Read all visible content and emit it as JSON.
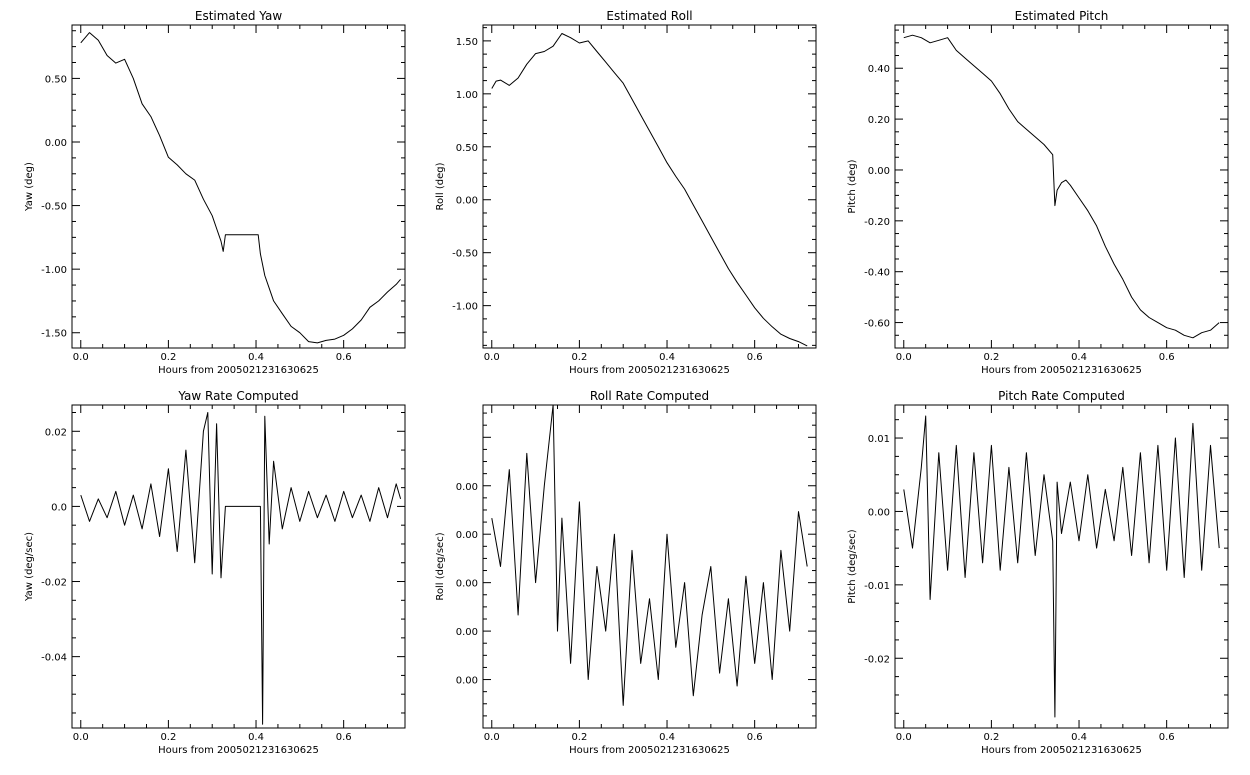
{
  "chart_data": [
    {
      "type": "line",
      "title": "Estimated Yaw",
      "xlabel": "Hours from 2005021231630625",
      "ylabel": "Yaw (deg)",
      "xlim": [
        -0.02,
        0.74
      ],
      "ylim": [
        -1.62,
        0.92
      ],
      "xticks": [
        0.0,
        0.2,
        0.4,
        0.6
      ],
      "xticklabels": [
        "0.0",
        "0.2",
        "0.4",
        "0.6"
      ],
      "yticks": [
        0.5,
        0.0,
        -0.5,
        -1.0,
        -1.5
      ],
      "yticklabels": [
        "0.50",
        "0.00",
        "-0.50",
        "-1.00",
        "-1.50"
      ],
      "series": [
        {
          "x": [
            0.0,
            0.02,
            0.04,
            0.06,
            0.08,
            0.1,
            0.12,
            0.14,
            0.16,
            0.18,
            0.2,
            0.22,
            0.24,
            0.26,
            0.28,
            0.3,
            0.31,
            0.32,
            0.325,
            0.33,
            0.35,
            0.37,
            0.39,
            0.405,
            0.41,
            0.42,
            0.43,
            0.44,
            0.46,
            0.48,
            0.5,
            0.52,
            0.54,
            0.56,
            0.58,
            0.6,
            0.62,
            0.64,
            0.66,
            0.68,
            0.7,
            0.72,
            0.73
          ],
          "y": [
            0.78,
            0.86,
            0.8,
            0.68,
            0.62,
            0.65,
            0.5,
            0.3,
            0.2,
            0.05,
            -0.12,
            -0.18,
            -0.25,
            -0.3,
            -0.45,
            -0.58,
            -0.68,
            -0.78,
            -0.86,
            -0.73,
            -0.73,
            -0.73,
            -0.73,
            -0.73,
            -0.88,
            -1.05,
            -1.15,
            -1.25,
            -1.35,
            -1.45,
            -1.5,
            -1.57,
            -1.58,
            -1.56,
            -1.55,
            -1.52,
            -1.47,
            -1.4,
            -1.3,
            -1.25,
            -1.18,
            -1.12,
            -1.08
          ]
        }
      ]
    },
    {
      "type": "line",
      "title": "Estimated Roll",
      "xlabel": "Hours from 2005021231630625",
      "ylabel": "Roll (deg)",
      "xlim": [
        -0.02,
        0.74
      ],
      "ylim": [
        -1.4,
        1.65
      ],
      "xticks": [
        0.0,
        0.2,
        0.4,
        0.6
      ],
      "xticklabels": [
        "0.0",
        "0.2",
        "0.4",
        "0.6"
      ],
      "yticks": [
        1.5,
        1.0,
        0.5,
        0.0,
        -0.5,
        -1.0
      ],
      "yticklabels": [
        "1.50",
        "1.00",
        "0.50",
        "0.00",
        "-0.50",
        "-1.00"
      ],
      "series": [
        {
          "x": [
            0.0,
            0.01,
            0.02,
            0.04,
            0.06,
            0.08,
            0.1,
            0.12,
            0.14,
            0.16,
            0.18,
            0.2,
            0.22,
            0.24,
            0.26,
            0.28,
            0.3,
            0.32,
            0.34,
            0.36,
            0.38,
            0.4,
            0.42,
            0.44,
            0.46,
            0.48,
            0.5,
            0.52,
            0.54,
            0.56,
            0.58,
            0.6,
            0.62,
            0.64,
            0.66,
            0.68,
            0.7,
            0.72
          ],
          "y": [
            1.05,
            1.12,
            1.13,
            1.08,
            1.15,
            1.28,
            1.38,
            1.4,
            1.45,
            1.57,
            1.53,
            1.48,
            1.5,
            1.4,
            1.3,
            1.2,
            1.1,
            0.95,
            0.8,
            0.65,
            0.5,
            0.35,
            0.22,
            0.1,
            -0.05,
            -0.2,
            -0.35,
            -0.5,
            -0.65,
            -0.78,
            -0.9,
            -1.02,
            -1.12,
            -1.2,
            -1.27,
            -1.31,
            -1.34,
            -1.38
          ]
        }
      ]
    },
    {
      "type": "line",
      "title": "Estimated Pitch",
      "xlabel": "Hours from 2005021231630625",
      "ylabel": "Pitch (deg)",
      "xlim": [
        -0.02,
        0.74
      ],
      "ylim": [
        -0.7,
        0.57
      ],
      "xticks": [
        0.0,
        0.2,
        0.4,
        0.6
      ],
      "xticklabels": [
        "0.0",
        "0.2",
        "0.4",
        "0.6"
      ],
      "yticks": [
        0.4,
        0.2,
        0.0,
        -0.2,
        -0.4,
        -0.6
      ],
      "yticklabels": [
        "0.40",
        "0.20",
        "0.00",
        "-0.20",
        "-0.40",
        "-0.60"
      ],
      "series": [
        {
          "x": [
            0.0,
            0.02,
            0.04,
            0.06,
            0.08,
            0.1,
            0.12,
            0.14,
            0.16,
            0.18,
            0.2,
            0.22,
            0.24,
            0.26,
            0.28,
            0.3,
            0.32,
            0.34,
            0.345,
            0.35,
            0.36,
            0.37,
            0.38,
            0.4,
            0.42,
            0.44,
            0.46,
            0.48,
            0.5,
            0.52,
            0.54,
            0.56,
            0.58,
            0.6,
            0.62,
            0.64,
            0.66,
            0.68,
            0.7,
            0.72
          ],
          "y": [
            0.52,
            0.53,
            0.52,
            0.5,
            0.51,
            0.52,
            0.47,
            0.44,
            0.41,
            0.38,
            0.35,
            0.3,
            0.24,
            0.19,
            0.16,
            0.13,
            0.1,
            0.06,
            -0.14,
            -0.08,
            -0.05,
            -0.04,
            -0.06,
            -0.11,
            -0.16,
            -0.22,
            -0.3,
            -0.37,
            -0.43,
            -0.5,
            -0.55,
            -0.58,
            -0.6,
            -0.62,
            -0.63,
            -0.65,
            -0.66,
            -0.64,
            -0.63,
            -0.6
          ]
        }
      ]
    },
    {
      "type": "line",
      "title": "Yaw Rate Computed",
      "xlabel": "Hours from 2005021231630625",
      "ylabel": "Yaw (deg/sec)",
      "xlim": [
        -0.02,
        0.74
      ],
      "ylim": [
        -0.059,
        0.027
      ],
      "xticks": [
        0.0,
        0.2,
        0.4,
        0.6
      ],
      "xticklabels": [
        "0.0",
        "0.2",
        "0.4",
        "0.6"
      ],
      "yticks": [
        0.02,
        0.0,
        -0.02,
        -0.04
      ],
      "yticklabels": [
        "0.02",
        "0.0",
        "-0.02",
        "-0.04"
      ],
      "series": [
        {
          "x": [
            0.0,
            0.02,
            0.04,
            0.06,
            0.08,
            0.1,
            0.12,
            0.14,
            0.16,
            0.18,
            0.2,
            0.22,
            0.24,
            0.26,
            0.28,
            0.29,
            0.3,
            0.31,
            0.32,
            0.33,
            0.35,
            0.37,
            0.39,
            0.41,
            0.415,
            0.42,
            0.43,
            0.44,
            0.46,
            0.48,
            0.5,
            0.52,
            0.54,
            0.56,
            0.58,
            0.6,
            0.62,
            0.64,
            0.66,
            0.68,
            0.7,
            0.72,
            0.73
          ],
          "y": [
            0.003,
            -0.004,
            0.002,
            -0.003,
            0.004,
            -0.005,
            0.003,
            -0.006,
            0.006,
            -0.008,
            0.01,
            -0.012,
            0.015,
            -0.015,
            0.02,
            0.025,
            -0.018,
            0.022,
            -0.019,
            0.0,
            0.0,
            0.0,
            0.0,
            0.0,
            -0.058,
            0.024,
            -0.01,
            0.012,
            -0.006,
            0.005,
            -0.004,
            0.004,
            -0.003,
            0.003,
            -0.004,
            0.004,
            -0.003,
            0.003,
            -0.004,
            0.005,
            -0.003,
            0.006,
            0.002
          ]
        }
      ]
    },
    {
      "type": "line",
      "title": "Roll Rate Computed",
      "xlabel": "Hours from 2005021231630625",
      "ylabel": "Roll (deg/sec)",
      "xlim": [
        -0.02,
        0.74
      ],
      "ylim": [
        -0.0075,
        0.0025
      ],
      "xticks": [
        0.0,
        0.2,
        0.4,
        0.6
      ],
      "xticklabels": [
        "0.0",
        "0.2",
        "0.4",
        "0.6"
      ],
      "yticks": [
        0.0,
        -0.0015,
        -0.003,
        -0.0045,
        -0.006
      ],
      "yticklabels": [
        "0.00",
        "0.00",
        "0.00",
        "0.00",
        "0.00"
      ],
      "series": [
        {
          "x": [
            0.0,
            0.02,
            0.04,
            0.06,
            0.08,
            0.1,
            0.12,
            0.14,
            0.15,
            0.16,
            0.18,
            0.2,
            0.22,
            0.24,
            0.26,
            0.28,
            0.3,
            0.32,
            0.34,
            0.36,
            0.38,
            0.4,
            0.42,
            0.44,
            0.46,
            0.48,
            0.5,
            0.52,
            0.54,
            0.56,
            0.58,
            0.6,
            0.62,
            0.64,
            0.66,
            0.68,
            0.7,
            0.72
          ],
          "y": [
            -0.001,
            -0.0025,
            0.0005,
            -0.004,
            0.001,
            -0.003,
            0.0,
            0.0025,
            -0.0045,
            -0.001,
            -0.0055,
            -0.0005,
            -0.006,
            -0.0025,
            -0.0045,
            -0.0015,
            -0.0068,
            -0.002,
            -0.0055,
            -0.0035,
            -0.006,
            -0.0015,
            -0.005,
            -0.003,
            -0.0065,
            -0.004,
            -0.0025,
            -0.0058,
            -0.0035,
            -0.0062,
            -0.0028,
            -0.0055,
            -0.003,
            -0.006,
            -0.002,
            -0.0045,
            -0.0008,
            -0.0025
          ]
        }
      ]
    },
    {
      "type": "line",
      "title": "Pitch Rate Computed",
      "xlabel": "Hours from 2005021231630625",
      "ylabel": "Pitch (deg/sec)",
      "xlim": [
        -0.02,
        0.74
      ],
      "ylim": [
        -0.0295,
        0.0145
      ],
      "xticks": [
        0.0,
        0.2,
        0.4,
        0.6
      ],
      "xticklabels": [
        "0.0",
        "0.2",
        "0.4",
        "0.6"
      ],
      "yticks": [
        0.01,
        0.0,
        -0.01,
        -0.02
      ],
      "yticklabels": [
        "0.01",
        "0.00",
        "-0.01",
        "-0.02"
      ],
      "series": [
        {
          "x": [
            0.0,
            0.02,
            0.04,
            0.05,
            0.06,
            0.08,
            0.1,
            0.12,
            0.14,
            0.16,
            0.18,
            0.2,
            0.22,
            0.24,
            0.26,
            0.28,
            0.3,
            0.32,
            0.34,
            0.345,
            0.35,
            0.36,
            0.38,
            0.4,
            0.42,
            0.44,
            0.46,
            0.48,
            0.5,
            0.52,
            0.54,
            0.56,
            0.58,
            0.6,
            0.62,
            0.64,
            0.66,
            0.68,
            0.7,
            0.72
          ],
          "y": [
            0.003,
            -0.005,
            0.006,
            0.013,
            -0.012,
            0.008,
            -0.008,
            0.009,
            -0.009,
            0.008,
            -0.007,
            0.009,
            -0.008,
            0.006,
            -0.007,
            0.008,
            -0.006,
            0.005,
            -0.004,
            -0.028,
            0.004,
            -0.003,
            0.004,
            -0.004,
            0.005,
            -0.005,
            0.003,
            -0.004,
            0.006,
            -0.006,
            0.008,
            -0.007,
            0.009,
            -0.008,
            0.01,
            -0.009,
            0.012,
            -0.008,
            0.009,
            -0.005
          ]
        }
      ]
    }
  ]
}
